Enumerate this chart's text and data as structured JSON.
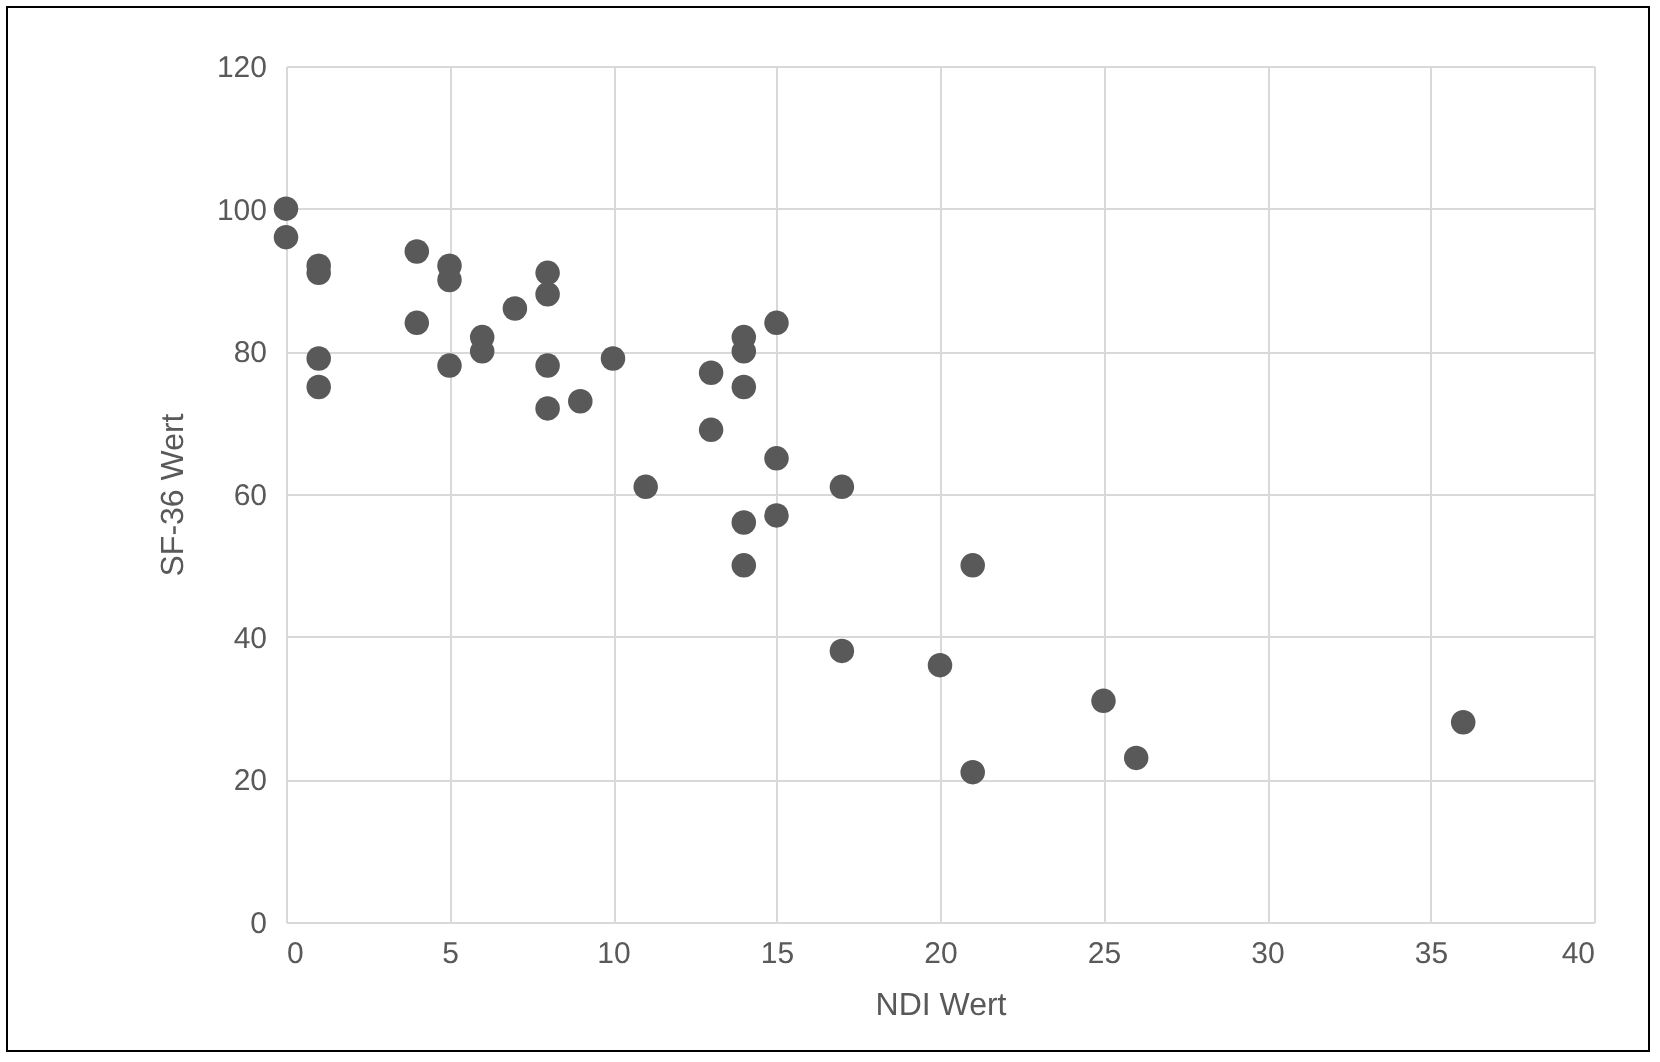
{
  "chart_data": {
    "type": "scatter",
    "xlabel": "NDI Wert",
    "ylabel": "SF-36 Wert",
    "x": [
      0,
      0,
      1,
      1,
      1,
      1,
      4,
      4,
      5,
      5,
      5,
      6,
      6,
      7,
      8,
      8,
      8,
      8,
      9,
      10,
      11,
      13,
      13,
      14,
      14,
      14,
      14,
      14,
      15,
      15,
      15,
      17,
      17,
      20,
      21,
      21,
      25,
      26,
      36
    ],
    "series": [
      {
        "color": "#595959",
        "values": [
          100,
          96,
          92,
          91,
          79,
          75,
          94,
          84,
          92,
          90,
          78,
          82,
          80,
          86,
          91,
          88,
          78,
          72,
          73,
          79,
          61,
          77,
          69,
          82,
          80,
          75,
          56,
          50,
          84,
          65,
          57,
          61,
          38,
          36,
          50,
          21,
          31,
          23,
          28
        ]
      }
    ],
    "xlim": [
      0,
      40
    ],
    "xticks": [
      0,
      5,
      10,
      15,
      20,
      25,
      30,
      35,
      40
    ],
    "ylim": [
      0,
      120
    ],
    "yticks": [
      0,
      20,
      40,
      60,
      80,
      100,
      120
    ],
    "grid": true,
    "marker": "circle"
  }
}
